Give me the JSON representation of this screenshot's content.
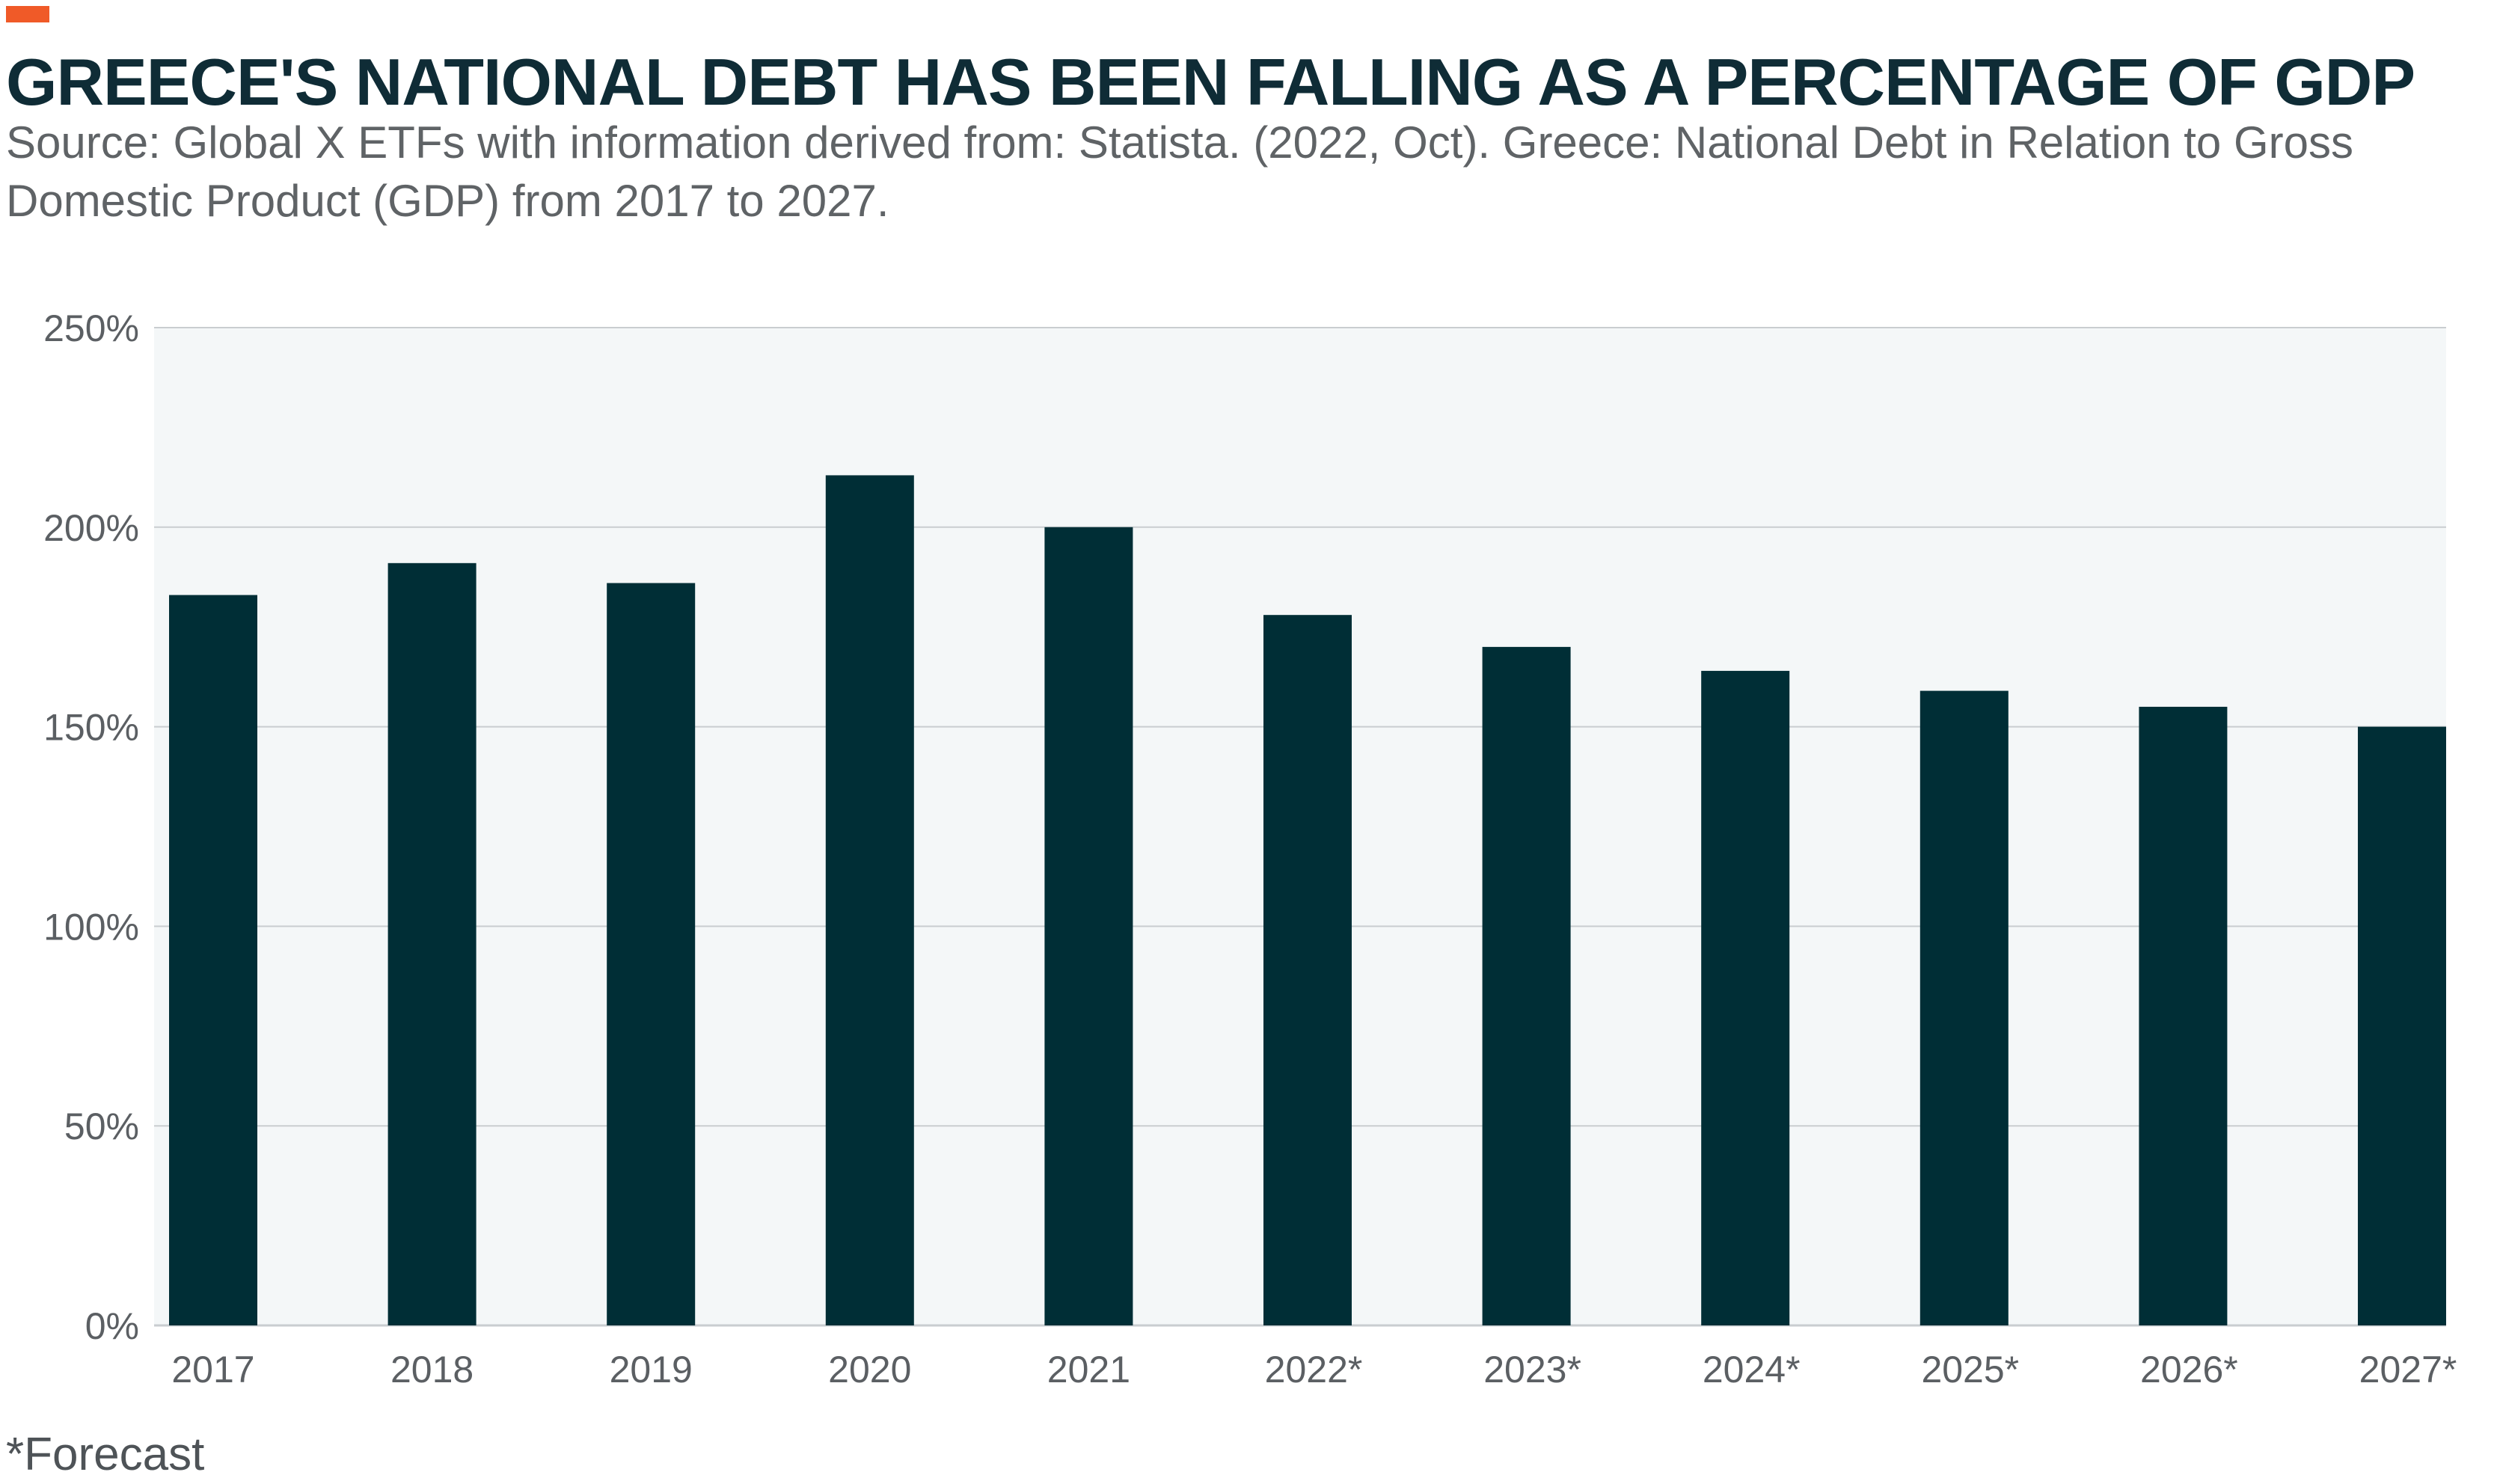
{
  "header": {
    "title": "GREECE'S NATIONAL DEBT HAS BEEN FALLING AS A PERCENTAGE OF GDP",
    "subtitle": "Source: Global X ETFs with information derived from: Statista. (2022, Oct). Greece: National Debt in Relation to Gross Domestic Product (GDP) from 2017 to 2027."
  },
  "footnote": "*Forecast",
  "colors": {
    "accent": "#f05a28",
    "title": "#0f2c36",
    "bar": "#002e36",
    "plot_background": "#f4f7f8",
    "gridline": "#c9cdd0",
    "text": "#5b5f63"
  },
  "chart_data": {
    "type": "bar",
    "title": "",
    "xlabel": "",
    "ylabel": "",
    "categories": [
      "2017",
      "2018",
      "2019",
      "2020",
      "2021",
      "2022*",
      "2023*",
      "2024*",
      "2025*",
      "2026*",
      "2027*"
    ],
    "values": [
      183,
      191,
      186,
      213,
      200,
      178,
      170,
      164,
      159,
      155,
      150
    ],
    "ylim": [
      0,
      250
    ],
    "yticks": [
      0,
      50,
      100,
      150,
      200,
      250
    ],
    "ytick_labels": [
      "0%",
      "50%",
      "100%",
      "150%",
      "200%",
      "250%"
    ],
    "grid": true,
    "legend": "none"
  }
}
